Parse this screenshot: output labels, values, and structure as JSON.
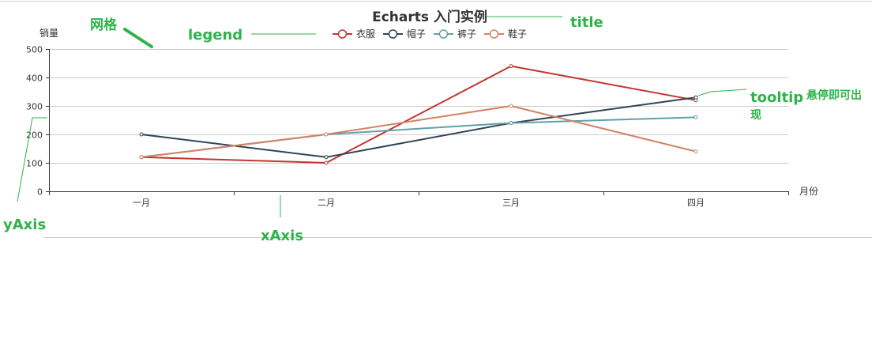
{
  "chart_data": {
    "type": "line",
    "title": "Echarts 入门实例",
    "xlabel": "月份",
    "ylabel": "销量",
    "categories": [
      "一月",
      "二月",
      "三月",
      "四月"
    ],
    "ylim": [
      0,
      500
    ],
    "yticks": [
      0,
      100,
      200,
      300,
      400,
      500
    ],
    "grid": true,
    "legend_position": "top-center",
    "series": [
      {
        "name": "衣服",
        "color": "#c23531",
        "values": [
          120,
          100,
          440,
          320
        ]
      },
      {
        "name": "帽子",
        "color": "#2f4554",
        "values": [
          200,
          120,
          240,
          330
        ]
      },
      {
        "name": "裤子",
        "color": "#61a0a8",
        "values": [
          120,
          200,
          240,
          260
        ]
      },
      {
        "name": "鞋子",
        "color": "#d48265",
        "values": [
          120,
          200,
          300,
          140
        ]
      }
    ]
  },
  "annotations": {
    "grid": "网格",
    "legend": "legend",
    "title": "title",
    "tooltip": "tooltip",
    "tooltip_note_line1": "悬停即可出",
    "tooltip_note_line2": "现",
    "yaxis": "yAxis",
    "xaxis": "xAxis",
    "color": "#2eb34a"
  }
}
